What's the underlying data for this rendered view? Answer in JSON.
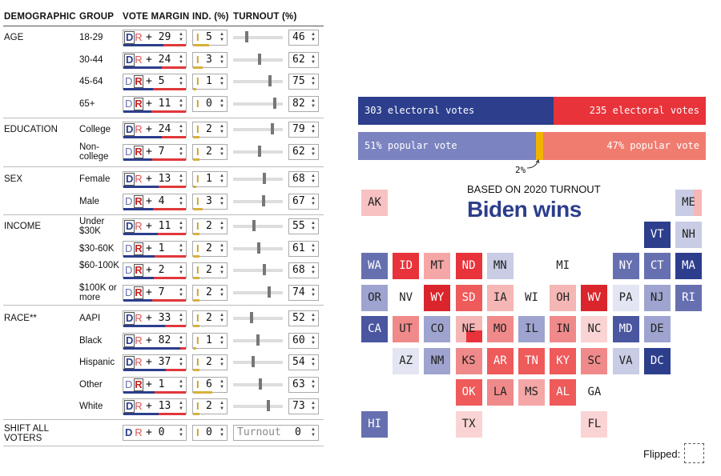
{
  "headers": {
    "demographic": "DEMOGRAPHIC",
    "group": "GROUP",
    "vote_margin": "VOTE MARGIN",
    "ind": "IND. (%)",
    "turnout": "TURNOUT (%)"
  },
  "sections": [
    {
      "label": "AGE",
      "rows": [
        {
          "group": "18-29",
          "party": "D",
          "margin": "+ 29",
          "ind": "5",
          "turnout": "46",
          "slider": 0.45
        },
        {
          "group": "30-44",
          "party": "D",
          "margin": "+ 24",
          "ind": "3",
          "turnout": "62",
          "slider": 0.62
        },
        {
          "group": "45-64",
          "party": "R",
          "margin": "+ 5",
          "ind": "1",
          "turnout": "75",
          "slider": 0.75
        },
        {
          "group": "65+",
          "party": "R",
          "margin": "+ 11",
          "ind": "0",
          "turnout": "82",
          "slider": 0.82
        }
      ]
    },
    {
      "label": "EDUCATION",
      "rows": [
        {
          "group": "College",
          "party": "D",
          "margin": "+ 24",
          "ind": "2",
          "turnout": "79",
          "slider": 0.79
        },
        {
          "group": "Non-college",
          "party": "R",
          "margin": "+ 7",
          "ind": "2",
          "turnout": "62",
          "slider": 0.62
        }
      ]
    },
    {
      "label": "SEX",
      "rows": [
        {
          "group": "Female",
          "party": "D",
          "margin": "+ 13",
          "ind": "1",
          "turnout": "68",
          "slider": 0.68
        },
        {
          "group": "Male",
          "party": "R",
          "margin": "+ 4",
          "ind": "3",
          "turnout": "67",
          "slider": 0.67
        }
      ]
    },
    {
      "label": "INCOME",
      "rows": [
        {
          "group": "Under $30K",
          "party": "D",
          "margin": "+ 11",
          "ind": "2",
          "turnout": "55",
          "slider": 0.55
        },
        {
          "group": "$30-60K",
          "party": "R",
          "margin": "+ 1",
          "ind": "2",
          "turnout": "61",
          "slider": 0.61
        },
        {
          "group": "$60-100K",
          "party": "R",
          "margin": "+ 2",
          "ind": "2",
          "turnout": "68",
          "slider": 0.68
        },
        {
          "group": "$100K or more",
          "party": "R",
          "margin": "+ 7",
          "ind": "2",
          "turnout": "74",
          "slider": 0.74
        }
      ]
    },
    {
      "label": "RACE**",
      "rows": [
        {
          "group": "AAPI",
          "party": "D",
          "margin": "+ 33",
          "ind": "2",
          "turnout": "52",
          "slider": 0.52
        },
        {
          "group": "Black",
          "party": "D",
          "margin": "+ 82",
          "ind": "1",
          "turnout": "60",
          "slider": 0.6
        },
        {
          "group": "Hispanic",
          "party": "D",
          "margin": "+ 37",
          "ind": "2",
          "turnout": "54",
          "slider": 0.54
        },
        {
          "group": "Other",
          "party": "R",
          "margin": "+ 1",
          "ind": "6",
          "turnout": "63",
          "slider": 0.63
        },
        {
          "group": "White",
          "party": "D",
          "margin": "+ 13",
          "ind": "2",
          "turnout": "73",
          "slider": 0.73
        }
      ]
    }
  ],
  "shift_all": {
    "label": "SHIFT ALL VOTERS",
    "party": "D",
    "margin": "+ 0",
    "ind": "0",
    "turnout_placeholder": "Turnout",
    "turnout": "0"
  },
  "results": {
    "dem_ev": "303 electoral votes",
    "rep_ev": "235 electoral votes",
    "dem_pop": "51% popular vote",
    "rep_pop": "47% popular vote",
    "other_pop": "2%",
    "subtitle": "BASED ON 2020 TURNOUT",
    "headline": "Biden wins",
    "colors": {
      "dem": "#2c3e8c",
      "rep": "#e8333a",
      "dem_light": "#7b83c0",
      "rep_light": "#f07c70",
      "other": "#f0b400"
    }
  },
  "legend": {
    "flipped": "Flipped:"
  },
  "states": [
    {
      "code": "AK",
      "c": "#f8c2c2",
      "col": 0,
      "row": 0
    },
    {
      "code": "ME",
      "c": "#c8cce4",
      "col": 10,
      "row": 0
    },
    {
      "code": "VT",
      "c": "#2c3e8c",
      "col": 9,
      "row": 1,
      "light": true
    },
    {
      "code": "NH",
      "c": "#c8cce4",
      "col": 10,
      "row": 1
    },
    {
      "code": "WA",
      "c": "#6670b0",
      "col": 0,
      "row": 2,
      "light": true
    },
    {
      "code": "ID",
      "c": "#e8333a",
      "col": 1,
      "row": 2,
      "light": true
    },
    {
      "code": "MT",
      "c": "#f5a6a6",
      "col": 2,
      "row": 2
    },
    {
      "code": "ND",
      "c": "#e8333a",
      "col": 3,
      "row": 2,
      "light": true
    },
    {
      "code": "MN",
      "c": "#c8cce4",
      "col": 4,
      "row": 2
    },
    {
      "code": "MI",
      "c": "#ffffff",
      "col": 6,
      "row": 2
    },
    {
      "code": "NY",
      "c": "#6670b0",
      "col": 8,
      "row": 2,
      "light": true
    },
    {
      "code": "CT",
      "c": "#6670b0",
      "col": 9,
      "row": 2,
      "light": true
    },
    {
      "code": "MA",
      "c": "#2c3e8c",
      "col": 10,
      "row": 2,
      "light": true
    },
    {
      "code": "OR",
      "c": "#9ea4cf",
      "col": 0,
      "row": 3
    },
    {
      "code": "NV",
      "c": "#ffffff",
      "col": 1,
      "row": 3
    },
    {
      "code": "WY",
      "c": "#d9252b",
      "col": 2,
      "row": 3,
      "light": true
    },
    {
      "code": "SD",
      "c": "#ef5a5a",
      "col": 3,
      "row": 3,
      "light": true
    },
    {
      "code": "IA",
      "c": "#f5b6b6",
      "col": 4,
      "row": 3
    },
    {
      "code": "WI",
      "c": "#ffffff",
      "col": 5,
      "row": 3
    },
    {
      "code": "OH",
      "c": "#f5b6b6",
      "col": 6,
      "row": 3
    },
    {
      "code": "WV",
      "c": "#d9252b",
      "col": 7,
      "row": 3,
      "light": true
    },
    {
      "code": "PA",
      "c": "#e3e5f2",
      "col": 8,
      "row": 3
    },
    {
      "code": "NJ",
      "c": "#9ea4cf",
      "col": 9,
      "row": 3
    },
    {
      "code": "RI",
      "c": "#6670b0",
      "col": 10,
      "row": 3,
      "light": true
    },
    {
      "code": "CA",
      "c": "#4a56a0",
      "col": 0,
      "row": 4,
      "light": true
    },
    {
      "code": "UT",
      "c": "#f08a8a",
      "col": 1,
      "row": 4
    },
    {
      "code": "CO",
      "c": "#9ea4cf",
      "col": 2,
      "row": 4
    },
    {
      "code": "NE",
      "c": "#f5b6b6",
      "col": 3,
      "row": 4
    },
    {
      "code": "MO",
      "c": "#f08a8a",
      "col": 4,
      "row": 4
    },
    {
      "code": "IL",
      "c": "#9ea4cf",
      "col": 5,
      "row": 4
    },
    {
      "code": "IN",
      "c": "#f08a8a",
      "col": 6,
      "row": 4
    },
    {
      "code": "NC",
      "c": "#fad4d4",
      "col": 7,
      "row": 4
    },
    {
      "code": "MD",
      "c": "#4a56a0",
      "col": 8,
      "row": 4,
      "light": true
    },
    {
      "code": "DE",
      "c": "#9ea4cf",
      "col": 9,
      "row": 4
    },
    {
      "code": "AZ",
      "c": "#e3e5f2",
      "col": 1,
      "row": 5
    },
    {
      "code": "NM",
      "c": "#9ea4cf",
      "col": 2,
      "row": 5
    },
    {
      "code": "KS",
      "c": "#f08a8a",
      "col": 3,
      "row": 5
    },
    {
      "code": "AR",
      "c": "#ef5a5a",
      "col": 4,
      "row": 5,
      "light": true
    },
    {
      "code": "TN",
      "c": "#ef5a5a",
      "col": 5,
      "row": 5,
      "light": true
    },
    {
      "code": "KY",
      "c": "#ef5a5a",
      "col": 6,
      "row": 5,
      "light": true
    },
    {
      "code": "SC",
      "c": "#f08a8a",
      "col": 7,
      "row": 5
    },
    {
      "code": "VA",
      "c": "#c8cce4",
      "col": 8,
      "row": 5
    },
    {
      "code": "DC",
      "c": "#2c3e8c",
      "col": 9,
      "row": 5,
      "light": true
    },
    {
      "code": "OK",
      "c": "#ef5a5a",
      "col": 3,
      "row": 6,
      "light": true
    },
    {
      "code": "LA",
      "c": "#f08a8a",
      "col": 4,
      "row": 6
    },
    {
      "code": "MS",
      "c": "#f5a6a6",
      "col": 5,
      "row": 6
    },
    {
      "code": "AL",
      "c": "#ef5a5a",
      "col": 6,
      "row": 6,
      "light": true
    },
    {
      "code": "GA",
      "c": "#ffffff",
      "col": 7,
      "row": 6
    },
    {
      "code": "HI",
      "c": "#6670b0",
      "col": 0,
      "row": 7,
      "light": true
    },
    {
      "code": "TX",
      "c": "#fad4d4",
      "col": 3,
      "row": 7
    },
    {
      "code": "FL",
      "c": "#fad4d4",
      "col": 7,
      "row": 7
    }
  ]
}
